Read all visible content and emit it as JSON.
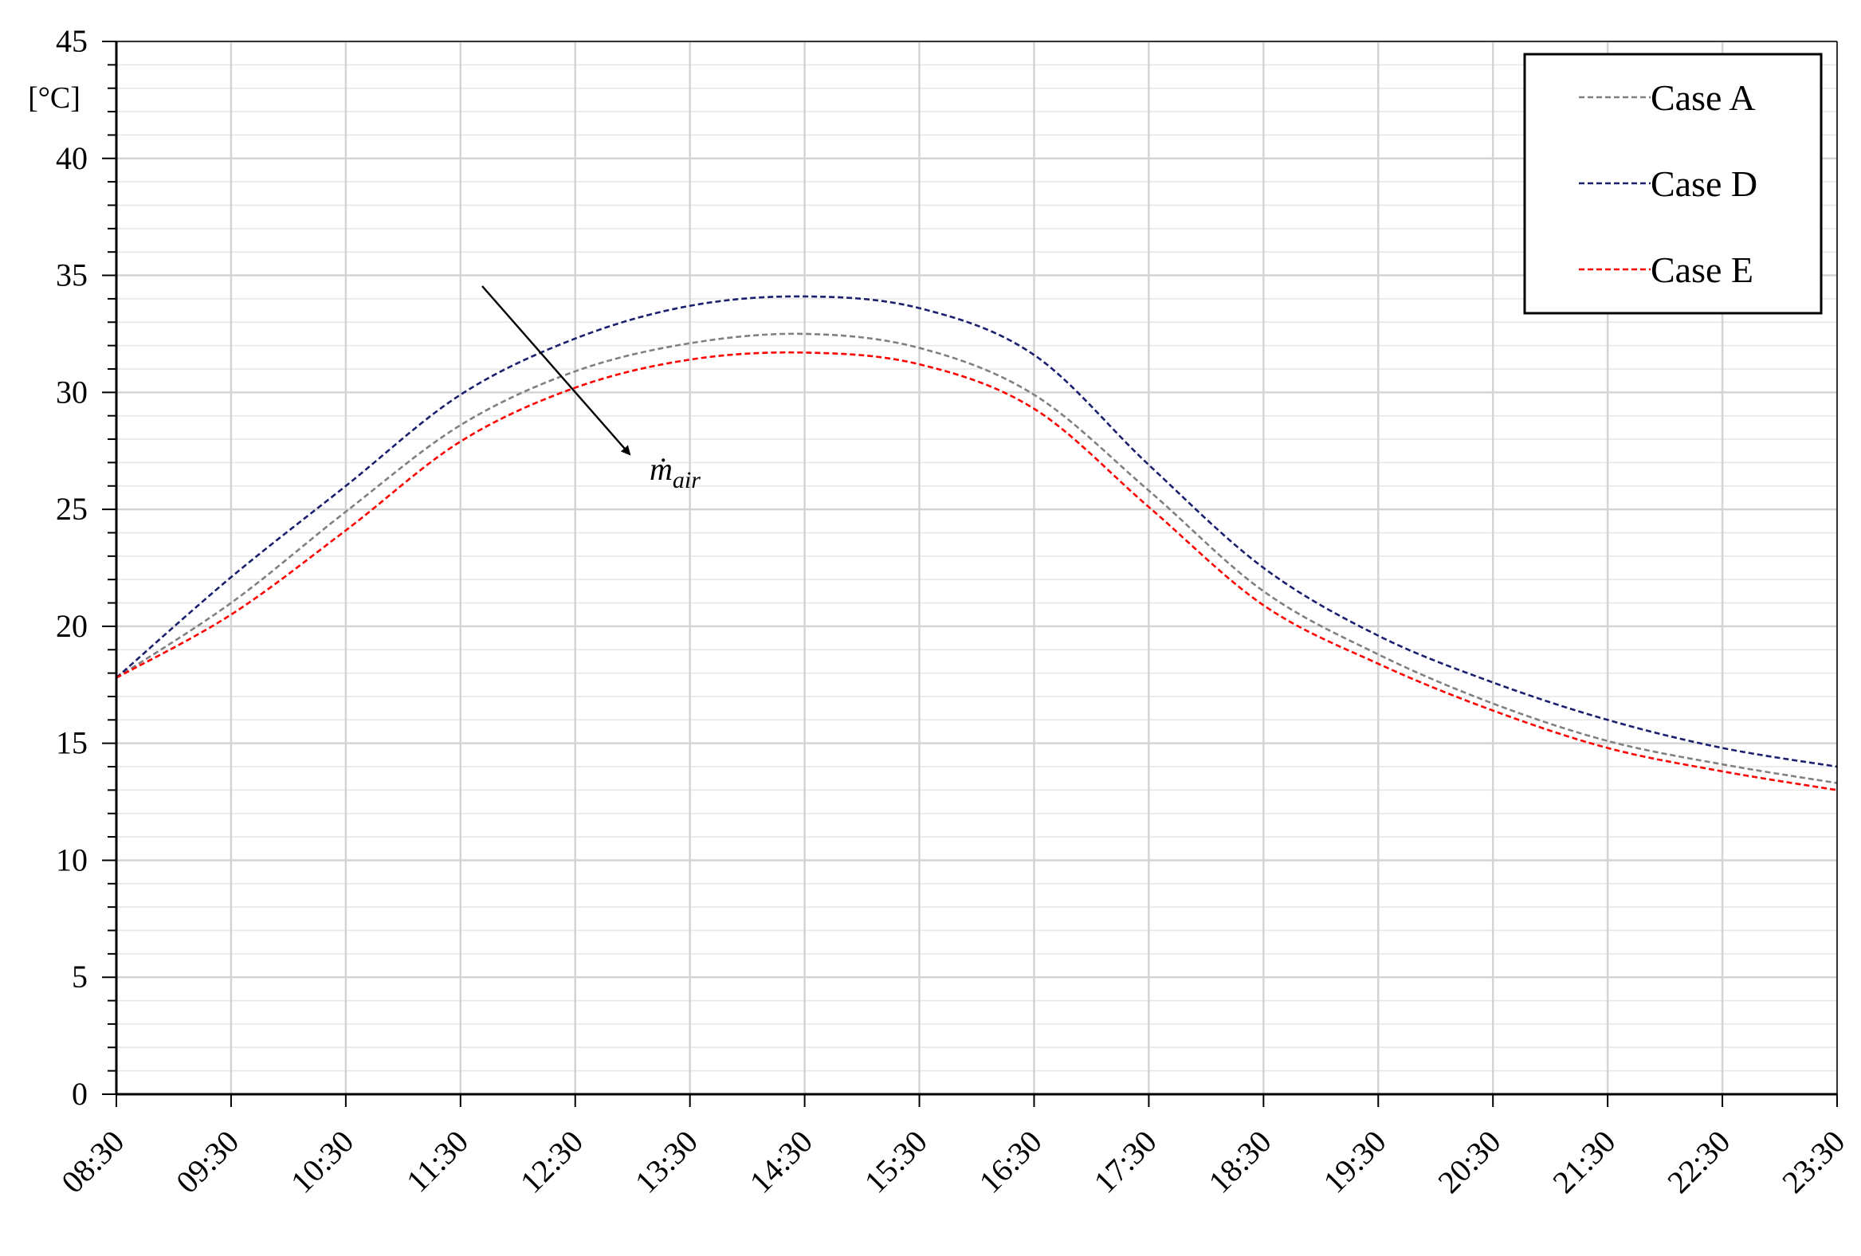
{
  "chart_data": {
    "type": "line",
    "title": "",
    "xlabel": "",
    "ylabel": "[°C]",
    "x": [
      "08:30",
      "09:30",
      "10:30",
      "11:30",
      "12:30",
      "13:30",
      "14:30",
      "15:30",
      "16:30",
      "17:30",
      "18:30",
      "19:30",
      "20:30",
      "21:30",
      "22:30",
      "23:30"
    ],
    "ylim": [
      0,
      45
    ],
    "yticks": [
      0,
      5,
      10,
      15,
      20,
      25,
      30,
      35,
      40,
      45
    ],
    "grid": true,
    "legend_position": "top-right",
    "series": [
      {
        "name": "Case A",
        "color": "#808080",
        "style": "dashed",
        "values": [
          17.8,
          21.0,
          24.9,
          28.6,
          30.9,
          32.1,
          32.5,
          31.9,
          29.9,
          25.8,
          21.5,
          18.8,
          16.7,
          15.1,
          14.1,
          13.3
        ]
      },
      {
        "name": "Case D",
        "color": "#1a1f6e",
        "style": "dashed",
        "values": [
          17.8,
          22.1,
          26.0,
          29.9,
          32.3,
          33.7,
          34.1,
          33.6,
          31.6,
          26.9,
          22.5,
          19.6,
          17.6,
          16.0,
          14.8,
          14.0
        ]
      },
      {
        "name": "Case E",
        "color": "#ff0000",
        "style": "dashed",
        "values": [
          17.8,
          20.5,
          24.1,
          27.9,
          30.2,
          31.4,
          31.7,
          31.2,
          29.3,
          25.1,
          20.9,
          18.4,
          16.4,
          14.8,
          13.8,
          13.0
        ]
      }
    ],
    "annotation": {
      "text": "ṁ",
      "subscript": "air"
    }
  }
}
